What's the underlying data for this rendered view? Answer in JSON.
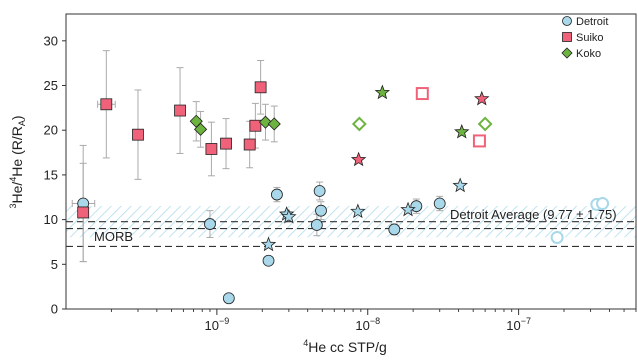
{
  "chart_data": {
    "type": "scatter",
    "xscale": "log",
    "xlim": [
      1e-10,
      6e-07
    ],
    "ylim": [
      0,
      33
    ],
    "xlabel": {
      "sup": "4",
      "text": "He cc STP/g"
    },
    "ylabel": {
      "sup1": "3",
      "mid": "He/",
      "sup2": "4",
      "rest": "He (R/R",
      "sub": "A",
      "close": ")"
    },
    "yticks": [
      0,
      5,
      10,
      15,
      20,
      25,
      30
    ],
    "yticklabels": [
      "0",
      "5",
      "10",
      "15",
      "20",
      "25",
      "30"
    ],
    "xticks": [
      1e-09,
      1e-08,
      1e-07
    ],
    "xticklabels": [
      {
        "base": "10",
        "exp": "−9"
      },
      {
        "base": "10",
        "exp": "−8"
      },
      {
        "base": "10",
        "exp": "−7"
      }
    ],
    "legend": {
      "placement": "top-right",
      "entries": [
        {
          "label": "Detroit",
          "marker": "circle",
          "color": "#a8d8ea"
        },
        {
          "label": "Suiko",
          "marker": "square",
          "color": "#f0627a"
        },
        {
          "label": "Koko",
          "marker": "diamond",
          "color": "#6db33f"
        }
      ]
    },
    "annotations": {
      "detroit_average_label": "Detroit Average (9.77 ± 1.75)",
      "detroit_average_value": 9.77,
      "detroit_average_band": [
        8.02,
        11.52
      ],
      "morb_label": "MORB",
      "morb_lines": [
        7.0,
        9.0
      ]
    },
    "colors": {
      "detroit": "#a8d8ea",
      "suiko": "#f0627a",
      "koko": "#6db33f",
      "band": "#a8d8ea",
      "errorbar": "#aaaaaa"
    },
    "series": [
      {
        "name": "Detroit",
        "marker": "circle",
        "style": "filled",
        "points": [
          {
            "x": 1.3e-10,
            "y": 11.8,
            "yerr": 6.5,
            "xerr": [
              1.1e-10,
              1.55e-10
            ]
          },
          {
            "x": 9e-10,
            "y": 9.5,
            "yerr": 1.5
          },
          {
            "x": 1.2e-09,
            "y": 1.2
          },
          {
            "x": 2.2e-09,
            "y": 5.4
          },
          {
            "x": 2.5e-09,
            "y": 12.8,
            "yerr": 0.8
          },
          {
            "x": 4.6e-09,
            "y": 9.4,
            "yerr": 1.2
          },
          {
            "x": 4.8e-09,
            "y": 13.2,
            "yerr": 1.0
          },
          {
            "x": 4.9e-09,
            "y": 11.0,
            "yerr": 1.0
          },
          {
            "x": 1.5e-08,
            "y": 8.9,
            "yerr": 0.6
          },
          {
            "x": 2.1e-08,
            "y": 11.5,
            "yerr": 0.8
          },
          {
            "x": 3e-08,
            "y": 11.8,
            "yerr": 0.8
          }
        ]
      },
      {
        "name": "Detroit",
        "marker": "circle",
        "style": "open",
        "points": [
          {
            "x": 1.8e-07,
            "y": 8.0
          },
          {
            "x": 3.3e-07,
            "y": 11.7
          },
          {
            "x": 3.6e-07,
            "y": 11.8
          }
        ]
      },
      {
        "name": "Detroit",
        "marker": "star",
        "style": "filled",
        "points": [
          {
            "x": 2.2e-09,
            "y": 7.2
          },
          {
            "x": 2.9e-09,
            "y": 10.6
          },
          {
            "x": 3e-09,
            "y": 10.3
          },
          {
            "x": 8.6e-09,
            "y": 10.9
          },
          {
            "x": 1.85e-08,
            "y": 11.1
          },
          {
            "x": 4.1e-08,
            "y": 13.8
          }
        ]
      },
      {
        "name": "Suiko",
        "marker": "square",
        "style": "filled",
        "points": [
          {
            "x": 1.3e-10,
            "y": 10.8,
            "yerr": 5.5
          },
          {
            "x": 1.85e-10,
            "y": 22.9,
            "yerr": 6.0,
            "xerr": [
              1.62e-10,
              2.12e-10
            ]
          },
          {
            "x": 3e-10,
            "y": 19.5,
            "yerr": 5.0
          },
          {
            "x": 5.7e-10,
            "y": 22.2,
            "yerr": 4.8
          },
          {
            "x": 9.2e-10,
            "y": 17.9,
            "yerr": 3.0
          },
          {
            "x": 1.15e-09,
            "y": 18.5,
            "yerr": 2.8
          },
          {
            "x": 1.65e-09,
            "y": 18.4,
            "yerr": 2.6
          },
          {
            "x": 1.8e-09,
            "y": 20.5,
            "yerr": 2.5
          },
          {
            "x": 1.95e-09,
            "y": 24.8,
            "yerr": 3.0
          }
        ]
      },
      {
        "name": "Suiko",
        "marker": "square",
        "style": "open",
        "points": [
          {
            "x": 2.3e-08,
            "y": 24.1
          },
          {
            "x": 5.5e-08,
            "y": 18.8
          }
        ]
      },
      {
        "name": "Suiko",
        "marker": "star",
        "style": "filled",
        "points": [
          {
            "x": 8.7e-09,
            "y": 16.7
          },
          {
            "x": 5.7e-08,
            "y": 23.5
          }
        ]
      },
      {
        "name": "Koko",
        "marker": "diamond",
        "style": "filled",
        "points": [
          {
            "x": 7.3e-10,
            "y": 21.0,
            "yerr": 2.2
          },
          {
            "x": 7.8e-10,
            "y": 20.1,
            "yerr": 2.0
          },
          {
            "x": 2.1e-09,
            "y": 20.9,
            "yerr": 2.0
          },
          {
            "x": 2.4e-09,
            "y": 20.7,
            "yerr": 2.0
          }
        ]
      },
      {
        "name": "Koko",
        "marker": "diamond",
        "style": "open",
        "points": [
          {
            "x": 8.8e-09,
            "y": 20.7
          },
          {
            "x": 6e-08,
            "y": 20.7
          }
        ]
      },
      {
        "name": "Koko",
        "marker": "star",
        "style": "filled",
        "points": [
          {
            "x": 1.25e-08,
            "y": 24.2
          },
          {
            "x": 4.2e-08,
            "y": 19.8
          }
        ]
      }
    ]
  }
}
